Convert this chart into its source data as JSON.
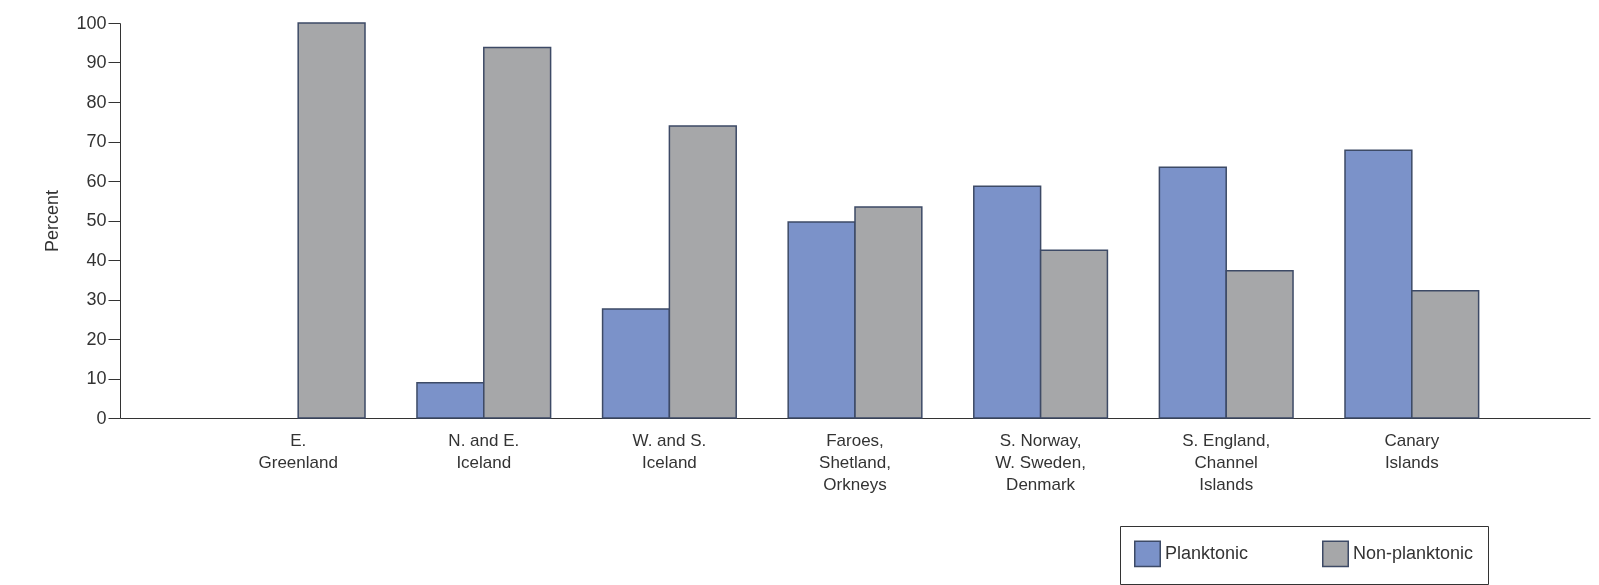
{
  "chart_data": {
    "type": "bar",
    "ylabel": "Percent",
    "categories": [
      "E.\nGreenland",
      "N. and E.\nIceland",
      "W. and S.\nIceland",
      "Faroes,\nShetland,\nOrkneys",
      "S. Norway,\nW. Sweden,\nDenmark",
      "S. England,\nChannel\nIslands",
      "Canary\nIslands"
    ],
    "series": [
      {
        "name": "Planktonic",
        "color": "#7b92c9",
        "values": [
          null,
          8.9,
          27.6,
          49.6,
          58.7,
          63.5,
          67.8
        ]
      },
      {
        "name": "Non-planktonic",
        "color": "#a6a7a9",
        "values": [
          100,
          93.8,
          73.9,
          53.4,
          42.5,
          37.3,
          32.2
        ]
      }
    ],
    "ylim": [
      0,
      100
    ],
    "yticks": [
      0,
      10,
      20,
      30,
      40,
      50,
      60,
      70,
      80,
      90,
      100
    ],
    "grid": false,
    "legend": "bottom right"
  }
}
